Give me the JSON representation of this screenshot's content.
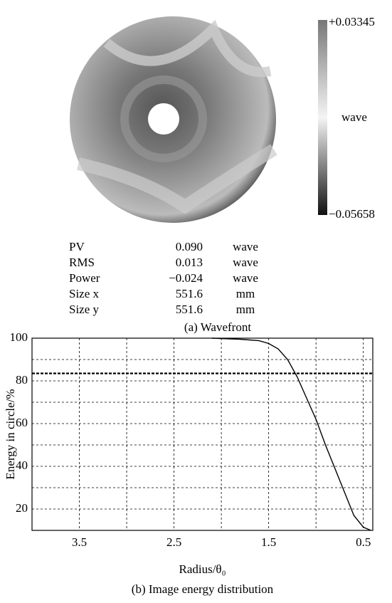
{
  "wavefront": {
    "colorbar": {
      "max_label": "+0.03345",
      "unit": "wave",
      "min_label": "−0.05658"
    },
    "stats": [
      [
        "PV",
        "0.090",
        "wave"
      ],
      [
        "RMS",
        "0.013",
        "wave"
      ],
      [
        "Power",
        "−0.024",
        "wave"
      ],
      [
        "Size x",
        "551.6",
        "mm"
      ],
      [
        "Size y",
        "551.6",
        "mm"
      ]
    ],
    "caption": "(a) Wavefront"
  },
  "chart_data": {
    "type": "line",
    "xlabel": "Radius/θ₀",
    "ylabel": "Energy in circle/%",
    "caption": "(b) Image energy distribution",
    "x": [
      2.1,
      2.0,
      1.8,
      1.6,
      1.5,
      1.4,
      1.3,
      1.2,
      1.1,
      1.0,
      0.9,
      0.8,
      0.7,
      0.6,
      0.5,
      0.42
    ],
    "values": [
      100,
      99.8,
      99.5,
      98.8,
      97.5,
      95,
      90,
      82,
      72,
      62,
      50,
      39,
      28,
      17,
      11.5,
      10
    ],
    "color": "#000000",
    "xlim": [
      4.0,
      0.4
    ],
    "xticks": [
      3.5,
      {
        "value": 3,
        "label": null
      },
      2.5,
      {
        "value": 2,
        "label": null
      },
      1.5,
      {
        "value": 1,
        "label": null
      },
      0.5
    ],
    "ylim": [
      10,
      100
    ],
    "yticks": [
      20,
      {
        "value": 30,
        "label": null
      },
      40,
      {
        "value": 50,
        "label": null
      },
      60,
      {
        "value": 70,
        "label": null
      },
      80,
      {
        "value": 90,
        "label": null
      },
      100
    ],
    "reference_line": 83.5,
    "grid": true
  }
}
